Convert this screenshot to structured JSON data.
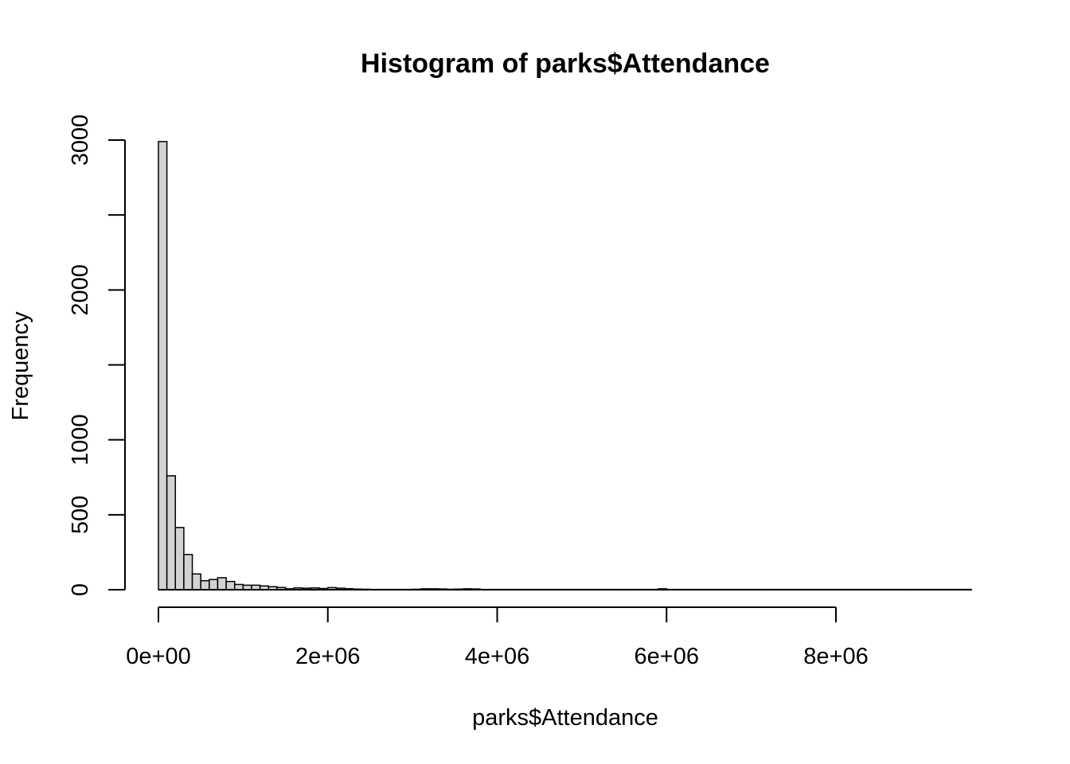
{
  "chart_data": {
    "type": "bar",
    "title": "Histogram of parks$Attendance",
    "xlabel": "parks$Attendance",
    "ylabel": "Frequency",
    "bin_width": 100000,
    "x_start": 0,
    "x_end": 9600000,
    "xlim": [
      0,
      9600000
    ],
    "ylim": [
      0,
      3000
    ],
    "x_ticks": [
      0,
      2000000,
      4000000,
      6000000,
      8000000
    ],
    "x_tick_labels": [
      "0e+00",
      "2e+06",
      "4e+06",
      "6e+06",
      "8e+06"
    ],
    "y_ticks": [
      0,
      500,
      1000,
      1500,
      2000,
      2500,
      3000
    ],
    "y_tick_labels": [
      "0",
      "500",
      "1000",
      "",
      "2000",
      "",
      "3000"
    ],
    "bar_color": "#d3d3d3",
    "values": [
      2990,
      760,
      415,
      235,
      105,
      60,
      68,
      80,
      55,
      35,
      30,
      30,
      25,
      20,
      15,
      6,
      12,
      10,
      12,
      8,
      14,
      10,
      7,
      4,
      3,
      2,
      2,
      2,
      2,
      2,
      3,
      6,
      6,
      5,
      3,
      4,
      6,
      5,
      2,
      2,
      2,
      2,
      2,
      2,
      2,
      2,
      2,
      2,
      2,
      2,
      2,
      2,
      2,
      2,
      2,
      2,
      2,
      2,
      2,
      6,
      2,
      2,
      2,
      2,
      2,
      2,
      2,
      2,
      2,
      2,
      2,
      2,
      2,
      2,
      2,
      2,
      2,
      2,
      2,
      2,
      2,
      2,
      2,
      2,
      2,
      2,
      2,
      2,
      2,
      2,
      2,
      2,
      2,
      2,
      2,
      2
    ]
  }
}
